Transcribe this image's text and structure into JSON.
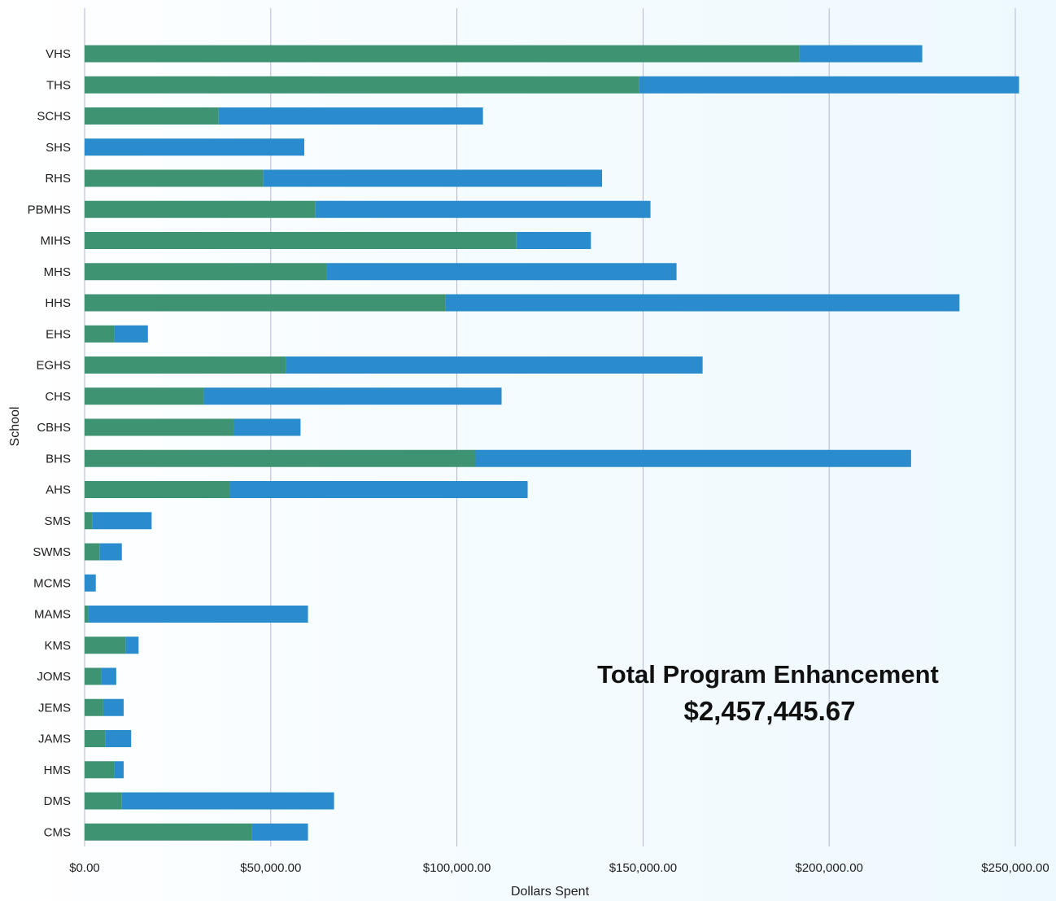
{
  "chart_data": {
    "type": "bar",
    "orientation": "horizontal",
    "stacked": true,
    "xlabel": "Dollars Spent",
    "ylabel": "School",
    "xlim": [
      0,
      250000
    ],
    "x_ticks": [
      "$0.00",
      "$50,000.00",
      "$100,000.00",
      "$150,000.00",
      "$200,000.00",
      "$250,000.00"
    ],
    "grid": "vertical",
    "legend": "none",
    "categories": [
      "VHS",
      "THS",
      "SCHS",
      "SHS",
      "RHS",
      "PBMHS",
      "MIHS",
      "MHS",
      "HHS",
      "EHS",
      "EGHS",
      "CHS",
      "CBHS",
      "BHS",
      "AHS",
      "SMS",
      "SWMS",
      "MCMS",
      "MAMS",
      "KMS",
      "JOMS",
      "JEMS",
      "JAMS",
      "HMS",
      "DMS",
      "CMS"
    ],
    "series": [
      {
        "color": "#3e9472",
        "values": [
          192000,
          149000,
          36000,
          0,
          48000,
          62000,
          116000,
          65000,
          97000,
          8000,
          54000,
          32000,
          40000,
          105000,
          39000,
          2000,
          4000,
          0,
          1000,
          11000,
          4500,
          5000,
          5500,
          8000,
          10000,
          45000
        ]
      },
      {
        "color": "#2a8ccc",
        "values": [
          33000,
          102000,
          71000,
          59000,
          91000,
          90000,
          20000,
          94000,
          138000,
          9000,
          112000,
          80000,
          18000,
          117000,
          80000,
          16000,
          6000,
          3000,
          59000,
          3500,
          4000,
          5500,
          7000,
          2500,
          57000,
          15000
        ]
      }
    ],
    "annotations": [
      "Total Program Enhancement",
      "$2,457,445.67"
    ]
  }
}
